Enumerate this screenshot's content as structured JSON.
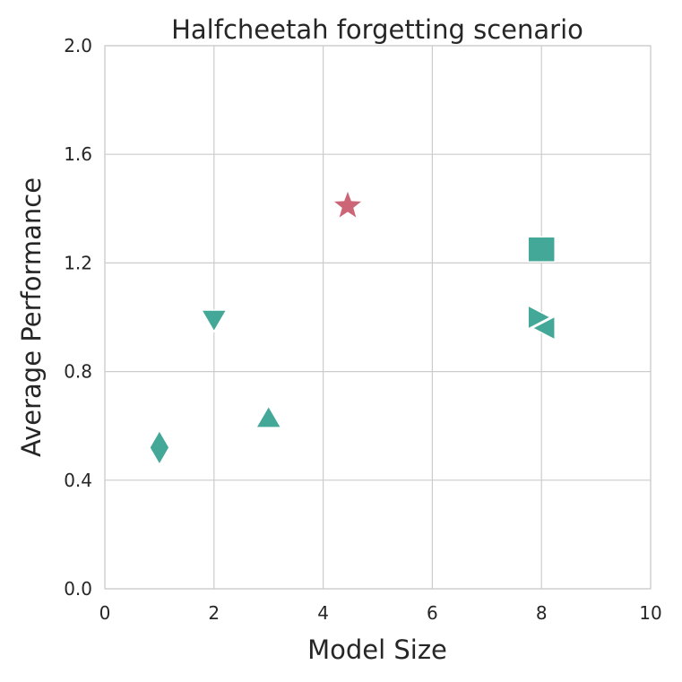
{
  "chart_data": {
    "type": "scatter",
    "title": "Halfcheetah forgetting scenario",
    "xlabel": "Model Size",
    "ylabel": "Average Performance",
    "xlim": [
      0,
      10
    ],
    "ylim": [
      0,
      2.0
    ],
    "xticks": [
      "0",
      "2",
      "4",
      "6",
      "8",
      "10"
    ],
    "xtick_values": [
      0,
      2,
      4,
      6,
      8,
      10
    ],
    "yticks": [
      "0.0",
      "0.4",
      "0.8",
      "1.2",
      "1.6",
      "2.0"
    ],
    "ytick_values": [
      0.0,
      0.4,
      0.8,
      1.2,
      1.6,
      2.0
    ],
    "grid": true,
    "points": [
      {
        "name": "diamond-point",
        "x": 1.0,
        "y": 0.52,
        "marker": "diamond",
        "color": "#44a898"
      },
      {
        "name": "triangle-down-point",
        "x": 2.0,
        "y": 0.99,
        "marker": "triangle-down",
        "color": "#44a898"
      },
      {
        "name": "triangle-up-point",
        "x": 3.0,
        "y": 0.63,
        "marker": "triangle-up",
        "color": "#44a898"
      },
      {
        "name": "star-point",
        "x": 4.45,
        "y": 1.41,
        "marker": "star",
        "color": "#cc6677"
      },
      {
        "name": "square-point",
        "x": 8.0,
        "y": 1.25,
        "marker": "square",
        "color": "#44a898"
      },
      {
        "name": "triangle-right-point",
        "x": 7.95,
        "y": 1.0,
        "marker": "triangle-right",
        "color": "#44a898"
      },
      {
        "name": "triangle-left-point",
        "x": 8.05,
        "y": 0.96,
        "marker": "triangle-left",
        "color": "#44a898"
      }
    ]
  }
}
